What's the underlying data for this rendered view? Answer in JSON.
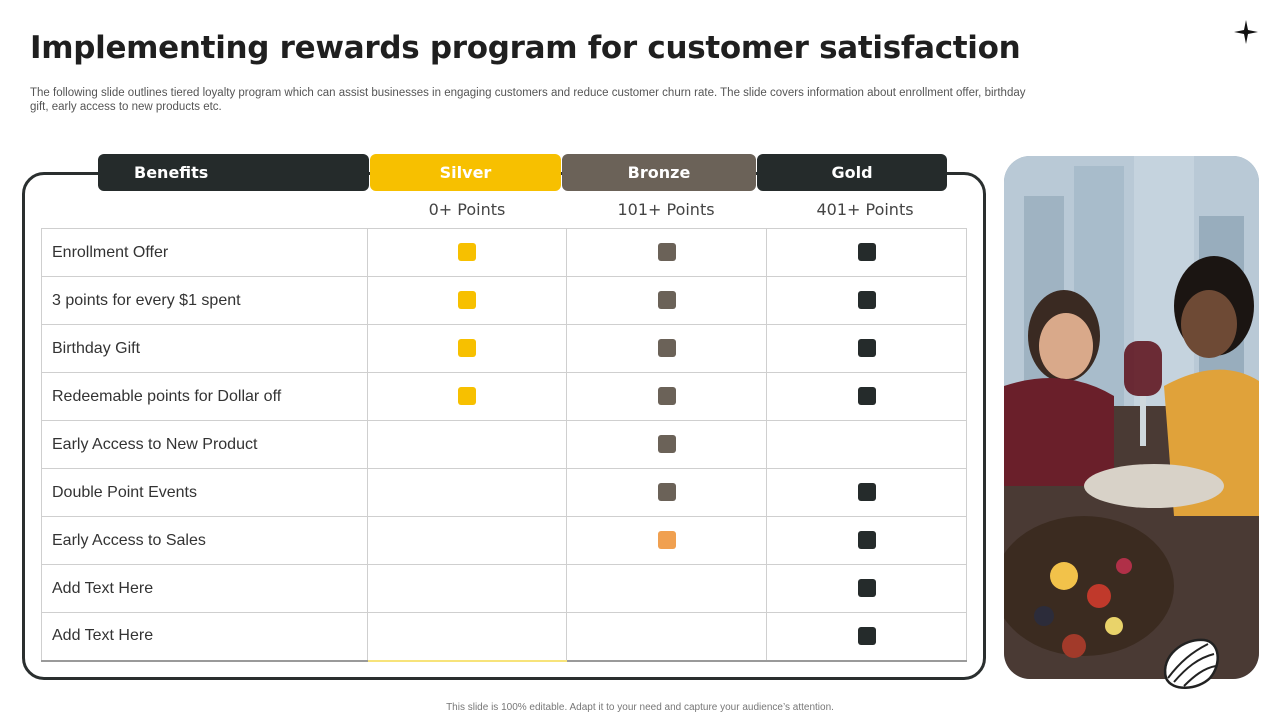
{
  "slide": {
    "title": "Implementing rewards program for customer satisfaction",
    "subtitle": "The following slide outlines tiered loyalty program which can assist businesses in engaging customers and reduce customer churn rate. The slide covers information about enrollment offer, birthday gift,  early access to new products etc.",
    "footer": "This slide is 100% editable.  Adapt it to your need and capture your audience’s attention."
  },
  "colors": {
    "silver": "#f7c000",
    "bronze": "#6b6258",
    "gold": "#252b2b",
    "orange": "#f0a050"
  },
  "table": {
    "headers": {
      "benefits": "Benefits",
      "silver": "Silver",
      "bronze": "Bronze",
      "gold": "Gold"
    },
    "points": {
      "silver": "0+ Points",
      "bronze": "101+ Points",
      "gold": "401+ Points"
    },
    "rows": [
      {
        "label": "Enrollment  Offer",
        "silver": "silver",
        "bronze": "bronze",
        "gold": "gold"
      },
      {
        "label": "3 points for every  $1 spent",
        "silver": "silver",
        "bronze": "bronze",
        "gold": "gold"
      },
      {
        "label": "Birthday Gift",
        "silver": "silver",
        "bronze": "bronze",
        "gold": "gold"
      },
      {
        "label": "Redeemable points for Dollar off",
        "silver": "silver",
        "bronze": "bronze",
        "gold": "gold"
      },
      {
        "label": "Early Access to New Product",
        "silver": "",
        "bronze": "bronze",
        "gold": ""
      },
      {
        "label": "Double Point Events",
        "silver": "",
        "bronze": "bronze",
        "gold": "gold"
      },
      {
        "label": "Early Access to Sales",
        "silver": "",
        "bronze": "orange",
        "gold": "gold"
      },
      {
        "label": "Add Text Here",
        "silver": "",
        "bronze": "",
        "gold": "gold"
      },
      {
        "label": "Add Text Here",
        "silver": "",
        "bronze": "",
        "gold": "gold"
      }
    ]
  },
  "icons": {
    "corner": "four-point-star-icon",
    "photo": "photo-placeholder",
    "leaf": "leaf-decoration-icon"
  }
}
